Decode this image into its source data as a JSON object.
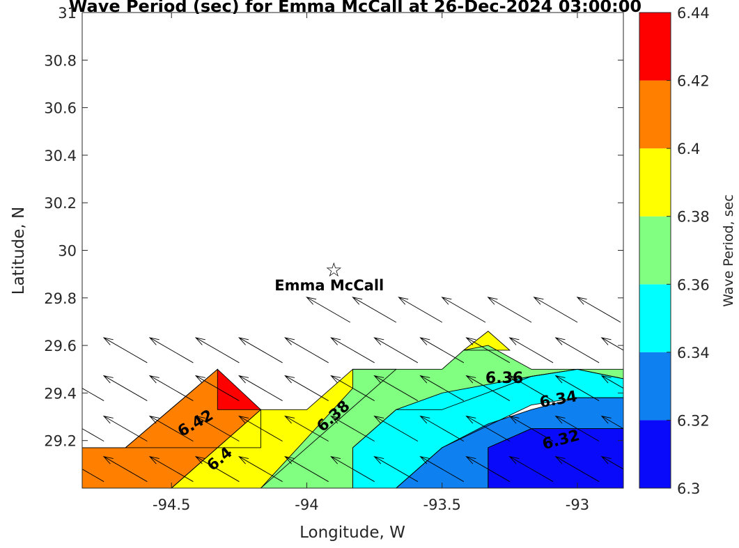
{
  "chart_data": {
    "type": "heatmap",
    "title": "Wave Period (sec) for Emma McCall at 26-Dec-2024 03:00:00",
    "xlabel": "Longitude, W",
    "ylabel": "Latitude, N",
    "xlim": [
      -94.83,
      -92.83
    ],
    "ylim": [
      29.0,
      31.0
    ],
    "xticks": [
      -94.5,
      -94,
      -93.5,
      -93
    ],
    "xtick_labels": [
      "-94.5",
      "-94",
      "-93.5",
      "-93"
    ],
    "yticks": [
      29.2,
      29.4,
      29.6,
      29.8,
      30.0,
      30.2,
      30.4,
      30.6,
      30.8,
      31.0
    ],
    "ytick_labels": [
      "29.2",
      "29.4",
      "29.6",
      "29.8",
      "30",
      "30.2",
      "30.4",
      "30.6",
      "30.8",
      "31"
    ],
    "colorbar": {
      "label": "Wave Period, sec",
      "ticks": [
        6.3,
        6.32,
        6.34,
        6.36,
        6.38,
        6.4,
        6.42,
        6.44
      ],
      "tick_labels": [
        "6.3",
        "6.32",
        "6.34",
        "6.36",
        "6.38",
        "6.4",
        "6.42",
        "6.44"
      ],
      "bands": [
        {
          "from": 6.3,
          "to": 6.32,
          "color": "#0a0afa"
        },
        {
          "from": 6.32,
          "to": 6.34,
          "color": "#0f80f0"
        },
        {
          "from": 6.34,
          "to": 6.36,
          "color": "#00ffff"
        },
        {
          "from": 6.36,
          "to": 6.38,
          "color": "#80ff80"
        },
        {
          "from": 6.38,
          "to": 6.4,
          "color": "#ffff00"
        },
        {
          "from": 6.4,
          "to": 6.42,
          "color": "#ff8000"
        },
        {
          "from": 6.42,
          "to": 6.44,
          "color": "#ff0000"
        }
      ]
    },
    "contour_regions": [
      {
        "level": 6.42,
        "color": "#ff0000",
        "polygon": [
          [
            -94.83,
            29.33
          ],
          [
            -94.83,
            29.17
          ],
          [
            -94.67,
            29.17
          ],
          [
            -94.33,
            29.5
          ],
          [
            -94.17,
            29.33
          ],
          [
            -94.17,
            29.17
          ],
          [
            -94.83,
            29.17
          ]
        ]
      },
      {
        "level": 6.4,
        "color": "#ff8000",
        "polygon": [
          [
            -94.83,
            29.17
          ],
          [
            -94.67,
            29.17
          ],
          [
            -94.67,
            29.17
          ],
          [
            -94.33,
            29.5
          ],
          [
            -94.33,
            29.33
          ],
          [
            -94.17,
            29.33
          ],
          [
            -94.5,
            29.0
          ],
          [
            -94.83,
            29.0
          ]
        ]
      },
      {
        "level": 6.38,
        "color": "#ffff00",
        "polygon": [
          [
            -94.5,
            29.0
          ],
          [
            -94.17,
            29.33
          ],
          [
            -94.0,
            29.33
          ],
          [
            -93.83,
            29.5
          ],
          [
            -93.67,
            29.5
          ],
          [
            -94.17,
            29.0
          ]
        ]
      },
      {
        "level": 6.38,
        "color": "#ffff00",
        "polygon": [
          [
            -93.42,
            29.58
          ],
          [
            -93.33,
            29.66
          ],
          [
            -93.25,
            29.58
          ]
        ]
      },
      {
        "level": 6.36,
        "color": "#80ff80",
        "polygon": [
          [
            -94.17,
            29.0
          ],
          [
            -93.83,
            29.42
          ],
          [
            -93.83,
            29.5
          ],
          [
            -93.5,
            29.5
          ],
          [
            -93.42,
            29.58
          ],
          [
            -93.33,
            29.6
          ],
          [
            -93.17,
            29.5
          ],
          [
            -93.0,
            29.5
          ],
          [
            -92.83,
            29.5
          ],
          [
            -92.83,
            29.46
          ],
          [
            -93.0,
            29.5
          ],
          [
            -93.17,
            29.47
          ],
          [
            -93.5,
            29.33
          ],
          [
            -93.67,
            29.33
          ],
          [
            -93.83,
            29.17
          ],
          [
            -93.83,
            29.0
          ]
        ]
      },
      {
        "level": 6.34,
        "color": "#00ffff",
        "polygon": [
          [
            -93.83,
            29.0
          ],
          [
            -93.83,
            29.17
          ],
          [
            -93.67,
            29.33
          ],
          [
            -93.5,
            29.4
          ],
          [
            -93.17,
            29.47
          ],
          [
            -93.0,
            29.5
          ],
          [
            -92.83,
            29.46
          ],
          [
            -92.83,
            29.38
          ],
          [
            -93.0,
            29.38
          ],
          [
            -93.17,
            29.35
          ],
          [
            -93.5,
            29.17
          ],
          [
            -93.67,
            29.0
          ]
        ]
      },
      {
        "level": 6.32,
        "color": "#0f80f0",
        "polygon": [
          [
            -93.67,
            29.0
          ],
          [
            -93.5,
            29.17
          ],
          [
            -93.33,
            29.27
          ],
          [
            -93.17,
            29.33
          ],
          [
            -93.0,
            29.38
          ],
          [
            -92.83,
            29.38
          ],
          [
            -92.83,
            29.25
          ],
          [
            -93.17,
            29.25
          ],
          [
            -93.33,
            29.17
          ],
          [
            -93.33,
            29.0
          ]
        ]
      },
      {
        "level": 6.3,
        "color": "#0a0afa",
        "polygon": [
          [
            -93.33,
            29.0
          ],
          [
            -93.33,
            29.17
          ],
          [
            -93.17,
            29.25
          ],
          [
            -92.83,
            29.25
          ],
          [
            -92.83,
            29.0
          ]
        ]
      }
    ],
    "contour_labels": [
      {
        "text": "6.42",
        "lon": -94.41,
        "lat": 29.27,
        "angle": -30
      },
      {
        "text": "6.4",
        "lon": -94.32,
        "lat": 29.12,
        "angle": -40
      },
      {
        "text": "6.38",
        "lon": -93.9,
        "lat": 29.3,
        "angle": -42
      },
      {
        "text": "6.36",
        "lon": -93.27,
        "lat": 29.46,
        "angle": 0
      },
      {
        "text": "6.34",
        "lon": -93.07,
        "lat": 29.37,
        "angle": -10
      },
      {
        "text": "6.32",
        "lon": -93.06,
        "lat": 29.2,
        "angle": -15
      }
    ],
    "station": {
      "name": "Emma McCall",
      "lon": -93.9,
      "lat": 29.92,
      "symbol": "☆"
    },
    "vector_field": {
      "direction_deg_from_east": 150,
      "points": [
        [
          -93.92,
          29.75
        ],
        [
          -93.75,
          29.75
        ],
        [
          -93.58,
          29.75
        ],
        [
          -93.42,
          29.75
        ],
        [
          -93.25,
          29.75
        ],
        [
          -93.08,
          29.75
        ],
        [
          -92.92,
          29.75
        ],
        [
          -94.67,
          29.58
        ],
        [
          -94.5,
          29.58
        ],
        [
          -94.33,
          29.58
        ],
        [
          -94.17,
          29.58
        ],
        [
          -94.0,
          29.58
        ],
        [
          -93.83,
          29.58
        ],
        [
          -93.67,
          29.58
        ],
        [
          -93.5,
          29.58
        ],
        [
          -93.33,
          29.58
        ],
        [
          -93.17,
          29.58
        ],
        [
          -93.0,
          29.58
        ],
        [
          -92.83,
          29.58
        ],
        [
          -94.83,
          29.42
        ],
        [
          -94.67,
          29.42
        ],
        [
          -94.5,
          29.42
        ],
        [
          -94.33,
          29.42
        ],
        [
          -94.17,
          29.42
        ],
        [
          -94.0,
          29.42
        ],
        [
          -93.83,
          29.42
        ],
        [
          -93.67,
          29.42
        ],
        [
          -93.5,
          29.42
        ],
        [
          -93.33,
          29.42
        ],
        [
          -93.17,
          29.42
        ],
        [
          -93.0,
          29.42
        ],
        [
          -92.83,
          29.42
        ],
        [
          -94.83,
          29.25
        ],
        [
          -94.67,
          29.25
        ],
        [
          -94.5,
          29.25
        ],
        [
          -94.33,
          29.25
        ],
        [
          -94.17,
          29.25
        ],
        [
          -94.0,
          29.25
        ],
        [
          -93.83,
          29.25
        ],
        [
          -93.67,
          29.25
        ],
        [
          -93.5,
          29.25
        ],
        [
          -93.33,
          29.25
        ],
        [
          -93.17,
          29.25
        ],
        [
          -93.0,
          29.25
        ],
        [
          -92.83,
          29.25
        ],
        [
          -94.83,
          29.08
        ],
        [
          -94.67,
          29.08
        ],
        [
          -94.5,
          29.08
        ],
        [
          -94.33,
          29.08
        ],
        [
          -94.17,
          29.08
        ],
        [
          -94.0,
          29.08
        ],
        [
          -93.83,
          29.08
        ],
        [
          -93.67,
          29.08
        ],
        [
          -93.5,
          29.08
        ],
        [
          -93.33,
          29.08
        ],
        [
          -93.17,
          29.08
        ],
        [
          -93.0,
          29.08
        ],
        [
          -92.83,
          29.08
        ]
      ]
    },
    "grid": false
  }
}
